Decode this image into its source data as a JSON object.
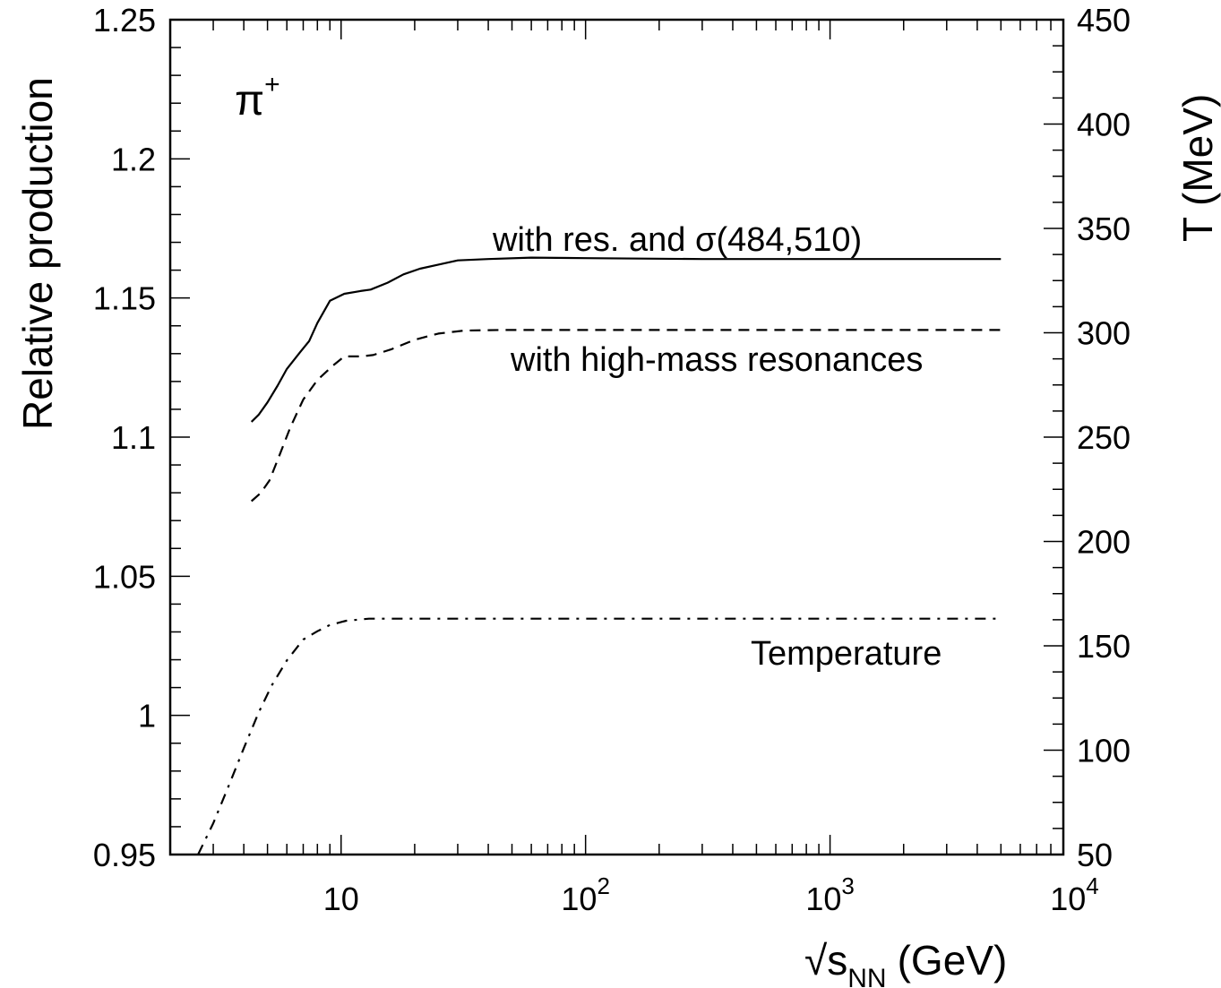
{
  "chart_data": {
    "type": "line",
    "panel_label": {
      "base": "π",
      "sup": "+"
    },
    "xlabel": {
      "prefix": "√",
      "base": "s",
      "sub": "NN",
      "unit": "(GeV)"
    },
    "ylabel": "Relative production",
    "y2label": "T (MeV)",
    "x_scale": "log",
    "xlim": [
      2.0,
      9000
    ],
    "ylim": [
      0.95,
      1.25
    ],
    "y2lim": [
      50,
      450
    ],
    "x_tick_labels": [
      {
        "value": 10,
        "base": "10",
        "exp": ""
      },
      {
        "value": 100,
        "base": "10",
        "exp": "2"
      },
      {
        "value": 1000,
        "base": "10",
        "exp": "3"
      },
      {
        "value": 10000,
        "base": "10",
        "exp": "4"
      }
    ],
    "y_tick_labels": [
      "0.95",
      "1",
      "1.05",
      "1.1",
      "1.15",
      "1.2",
      "1.25"
    ],
    "y_tick_values": [
      0.95,
      1.0,
      1.05,
      1.1,
      1.15,
      1.2,
      1.25
    ],
    "y2_tick_labels": [
      "50",
      "100",
      "150",
      "200",
      "250",
      "300",
      "350",
      "400",
      "450"
    ],
    "y2_tick_values": [
      50,
      100,
      150,
      200,
      250,
      300,
      350,
      400,
      450
    ],
    "series": [
      {
        "label": "with res. and σ(484,510)",
        "style": "solid",
        "axis": "left",
        "x": [
          4.3,
          4.6,
          5.0,
          5.5,
          6.0,
          6.8,
          7.4,
          8.0,
          9.0,
          10.3,
          12.0,
          13.2,
          15.5,
          18.0,
          21.0,
          25.0,
          30.0,
          40.0,
          60.0,
          100,
          300,
          1000,
          5000
        ],
        "y": [
          1.1055,
          1.108,
          1.1125,
          1.1185,
          1.1245,
          1.1305,
          1.1345,
          1.141,
          1.149,
          1.1515,
          1.1525,
          1.153,
          1.1555,
          1.1585,
          1.1605,
          1.162,
          1.1635,
          1.164,
          1.1645,
          1.1643,
          1.164,
          1.164,
          1.164
        ]
      },
      {
        "label": "with high-mass resonances",
        "style": "dashed",
        "axis": "left",
        "x": [
          4.3,
          4.7,
          5.1,
          5.6,
          6.2,
          7.0,
          8.0,
          9.2,
          10.3,
          12.0,
          13.5,
          16.0,
          20.0,
          25.0,
          32.0,
          45.0,
          100,
          1000,
          5000
        ],
        "y": [
          1.077,
          1.08,
          1.0845,
          1.0935,
          1.1035,
          1.1135,
          1.1205,
          1.1255,
          1.129,
          1.129,
          1.1295,
          1.1315,
          1.135,
          1.1372,
          1.1383,
          1.1385,
          1.1385,
          1.1385,
          1.1385
        ]
      },
      {
        "label": "Temperature",
        "style": "dashdot",
        "axis": "right",
        "x": [
          2.6,
          3.0,
          3.5,
          4.0,
          4.6,
          5.2,
          6.0,
          7.0,
          8.0,
          9.0,
          10.5,
          13.0,
          20.0,
          50.0,
          100,
          1000,
          5000
        ],
        "y": [
          50,
          65,
          84,
          101,
          118,
          131,
          143,
          153,
          157,
          160,
          162,
          163,
          163,
          163,
          163,
          163,
          163
        ]
      }
    ]
  }
}
